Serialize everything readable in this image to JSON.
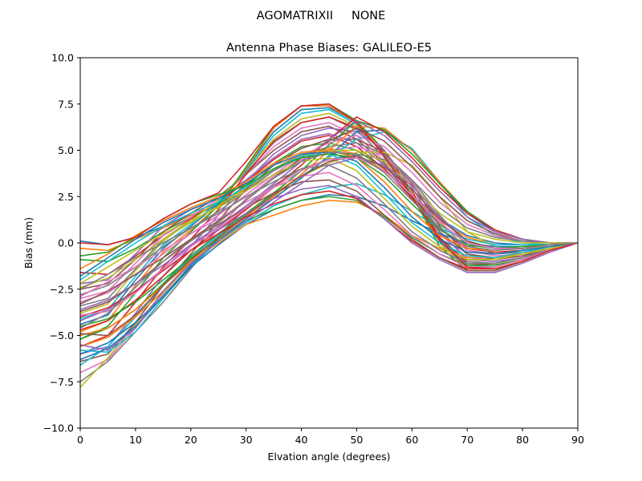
{
  "chart_data": {
    "type": "line",
    "suptitle": "AGOMATRIXII     NONE",
    "title": "Antenna Phase Biases: GALILEO-E5",
    "xlabel": "Elvation angle (degrees)",
    "ylabel": "Bias (mm)",
    "xlim": [
      0,
      90
    ],
    "ylim": [
      -10,
      10
    ],
    "xticks": [
      "0",
      "10",
      "20",
      "30",
      "40",
      "50",
      "60",
      "70",
      "80",
      "90"
    ],
    "yticks": [
      "10.0",
      "7.5",
      "5.0",
      "2.5",
      "0.0",
      "−2.5",
      "−5.0",
      "−7.5",
      "−10.0"
    ],
    "grid": false,
    "legend": "none",
    "x": [
      0,
      5,
      10,
      15,
      20,
      25,
      30,
      35,
      40,
      45,
      50,
      55,
      60,
      65,
      70,
      75,
      80,
      85,
      90
    ],
    "series": [
      {
        "values": [
          0.1,
          -0.1,
          0.3,
          0.9,
          1.5,
          2.0,
          2.8,
          3.9,
          4.7,
          5.0,
          4.7,
          3.9,
          2.6,
          1.3,
          0.4,
          0.0,
          -0.1,
          -0.1,
          0.0
        ]
      },
      {
        "values": [
          -0.3,
          -0.4,
          0.2,
          0.8,
          1.5,
          2.1,
          2.9,
          4.0,
          4.8,
          5.1,
          4.8,
          3.9,
          2.6,
          1.2,
          0.3,
          -0.1,
          -0.1,
          -0.1,
          0.0
        ]
      },
      {
        "values": [
          -0.9,
          -1.0,
          -0.3,
          0.6,
          1.4,
          2.1,
          3.1,
          4.3,
          5.2,
          5.4,
          5.0,
          4.0,
          2.5,
          1.0,
          0.0,
          -0.3,
          -0.3,
          -0.1,
          0.0
        ]
      },
      {
        "values": [
          -1.6,
          -1.7,
          -0.7,
          0.4,
          1.3,
          2.2,
          3.3,
          4.5,
          5.5,
          5.8,
          5.2,
          4.0,
          2.4,
          0.8,
          -0.3,
          -0.5,
          -0.4,
          -0.2,
          0.0
        ]
      },
      {
        "values": [
          -2.2,
          -2.0,
          -0.6,
          0.9,
          1.8,
          2.4,
          3.4,
          4.6,
          5.6,
          5.9,
          5.4,
          4.2,
          2.5,
          0.8,
          -0.4,
          -0.6,
          -0.4,
          -0.2,
          0.0
        ]
      },
      {
        "values": [
          -2.5,
          -2.2,
          -0.9,
          0.6,
          1.6,
          2.5,
          3.7,
          5.0,
          6.0,
          6.3,
          5.6,
          4.3,
          2.5,
          0.6,
          -0.6,
          -0.8,
          -0.6,
          -0.3,
          0.0
        ]
      },
      {
        "values": [
          -3.0,
          -2.6,
          -1.1,
          0.4,
          1.4,
          2.4,
          3.7,
          5.2,
          6.2,
          6.5,
          5.8,
          4.4,
          2.5,
          0.5,
          -0.8,
          -0.9,
          -0.7,
          -0.3,
          0.0
        ]
      },
      {
        "values": [
          -3.4,
          -3.0,
          -1.4,
          0.2,
          1.2,
          2.3,
          3.8,
          5.4,
          6.5,
          6.8,
          6.1,
          4.6,
          2.5,
          0.3,
          -1.0,
          -1.1,
          -0.8,
          -0.3,
          0.0
        ]
      },
      {
        "values": [
          -3.8,
          -3.3,
          -1.5,
          0.1,
          1.2,
          2.3,
          3.9,
          5.6,
          6.7,
          7.0,
          6.3,
          4.8,
          2.6,
          0.3,
          -1.1,
          -1.2,
          -0.9,
          -0.4,
          0.0
        ]
      },
      {
        "values": [
          -4.1,
          -3.6,
          -1.8,
          -0.1,
          1.0,
          2.2,
          3.9,
          5.8,
          7.0,
          7.2,
          6.4,
          4.8,
          2.6,
          0.2,
          -1.2,
          -1.3,
          -0.9,
          -0.4,
          0.0
        ]
      },
      {
        "values": [
          -4.4,
          -3.9,
          -2.0,
          -0.3,
          0.9,
          2.1,
          4.0,
          6.0,
          7.2,
          7.3,
          6.5,
          4.9,
          2.6,
          0.1,
          -1.3,
          -1.4,
          -1.0,
          -0.4,
          0.0
        ]
      },
      {
        "values": [
          -4.8,
          -4.2,
          -2.3,
          -0.5,
          0.7,
          2.0,
          4.0,
          6.2,
          7.4,
          7.4,
          6.5,
          4.9,
          2.6,
          0.0,
          -1.4,
          -1.4,
          -1.0,
          -0.4,
          0.0
        ]
      },
      {
        "values": [
          -5.2,
          -4.5,
          -2.7,
          -0.8,
          0.6,
          2.0,
          4.1,
          6.3,
          7.4,
          7.5,
          6.6,
          5.0,
          2.6,
          -0.2,
          -1.5,
          -1.5,
          -1.0,
          -0.4,
          0.0
        ]
      },
      {
        "values": [
          -5.6,
          -5.0,
          -3.2,
          -1.3,
          0.2,
          1.8,
          3.7,
          5.5,
          6.5,
          6.8,
          6.2,
          4.9,
          2.8,
          0.3,
          -1.1,
          -1.2,
          -0.9,
          -0.4,
          0.0
        ]
      },
      {
        "values": [
          -6.0,
          -5.6,
          -3.8,
          -1.8,
          -0.2,
          1.5,
          3.3,
          4.8,
          5.8,
          6.2,
          6.0,
          5.0,
          3.0,
          0.6,
          -0.9,
          -1.0,
          -0.8,
          -0.4,
          0.0
        ]
      },
      {
        "values": [
          -6.4,
          -6.0,
          -4.3,
          -2.3,
          -0.6,
          1.2,
          2.9,
          4.2,
          5.1,
          5.6,
          5.6,
          4.9,
          3.2,
          0.9,
          -0.6,
          -0.9,
          -0.7,
          -0.3,
          0.0
        ]
      },
      {
        "values": [
          -7.0,
          -6.3,
          -4.6,
          -2.8,
          -1.0,
          0.8,
          2.4,
          3.6,
          4.5,
          5.0,
          5.2,
          4.7,
          3.3,
          1.2,
          -0.4,
          -0.7,
          -0.6,
          -0.3,
          0.0
        ]
      },
      {
        "values": [
          -7.5,
          -6.4,
          -4.8,
          -3.2,
          -1.4,
          0.4,
          1.9,
          3.1,
          4.0,
          4.5,
          4.8,
          4.5,
          3.4,
          1.5,
          -0.1,
          -0.6,
          -0.5,
          -0.3,
          0.0
        ]
      },
      {
        "values": [
          -7.8,
          -6.2,
          -4.4,
          -2.7,
          -1.1,
          0.3,
          1.6,
          2.7,
          3.6,
          4.3,
          4.9,
          4.9,
          4.2,
          2.5,
          0.6,
          -0.2,
          -0.3,
          -0.2,
          0.0
        ]
      },
      {
        "values": [
          -6.6,
          -5.6,
          -4.0,
          -2.3,
          -0.8,
          0.4,
          1.5,
          2.6,
          3.6,
          4.6,
          5.6,
          6.0,
          5.1,
          3.3,
          1.4,
          0.4,
          0.0,
          -0.1,
          0.0
        ]
      },
      {
        "values": [
          -6.0,
          -5.4,
          -4.3,
          -2.9,
          -1.2,
          0.2,
          1.3,
          2.4,
          3.5,
          4.7,
          6.0,
          6.1,
          5.0,
          3.2,
          1.6,
          0.6,
          0.2,
          0.0,
          0.0
        ]
      },
      {
        "values": [
          -5.6,
          -5.1,
          -4.0,
          -2.6,
          -1.0,
          0.3,
          1.4,
          2.5,
          3.7,
          5.0,
          6.3,
          6.2,
          5.0,
          3.3,
          1.7,
          0.7,
          0.2,
          0.0,
          0.0
        ]
      },
      {
        "values": [
          -5.2,
          -4.6,
          -3.6,
          -2.2,
          -0.7,
          0.5,
          1.6,
          2.7,
          3.9,
          5.3,
          6.6,
          6.1,
          4.8,
          3.2,
          1.7,
          0.7,
          0.2,
          0.0,
          0.0
        ]
      },
      {
        "values": [
          -4.7,
          -4.2,
          -3.1,
          -1.8,
          -0.4,
          0.7,
          1.8,
          3.0,
          4.2,
          5.6,
          6.8,
          6.0,
          4.6,
          3.0,
          1.6,
          0.7,
          0.2,
          0.0,
          0.0
        ]
      },
      {
        "values": [
          -4.2,
          -3.6,
          -2.6,
          -1.4,
          -0.1,
          0.9,
          2.0,
          3.2,
          4.4,
          5.6,
          6.6,
          5.8,
          4.4,
          2.8,
          1.4,
          0.6,
          0.2,
          0.0,
          0.0
        ]
      },
      {
        "values": [
          -3.7,
          -3.2,
          -2.2,
          -1.0,
          0.2,
          1.2,
          2.3,
          3.5,
          4.6,
          5.5,
          6.2,
          5.5,
          4.1,
          2.5,
          1.2,
          0.5,
          0.1,
          0.0,
          0.0
        ]
      },
      {
        "values": [
          -3.2,
          -2.7,
          -1.7,
          -0.6,
          0.5,
          1.5,
          2.6,
          3.7,
          4.7,
          5.4,
          5.8,
          5.2,
          3.8,
          2.2,
          1.0,
          0.4,
          0.1,
          0.0,
          0.0
        ]
      },
      {
        "values": [
          -2.8,
          -2.3,
          -1.3,
          -0.2,
          0.8,
          1.7,
          2.8,
          3.9,
          4.7,
          5.2,
          5.4,
          4.8,
          3.4,
          1.9,
          0.8,
          0.3,
          0.1,
          0.0,
          0.0
        ]
      },
      {
        "values": [
          -2.4,
          -1.9,
          -0.9,
          0.2,
          1.1,
          2.0,
          3.0,
          4.0,
          4.7,
          5.0,
          5.0,
          4.4,
          3.1,
          1.6,
          0.6,
          0.2,
          0.0,
          0.0,
          0.0
        ]
      },
      {
        "values": [
          -5.8,
          -5.9,
          -4.8,
          -3.0,
          -1.3,
          0.1,
          1.1,
          2.0,
          2.6,
          3.0,
          3.2,
          2.6,
          1.7,
          0.8,
          0.2,
          -0.1,
          -0.1,
          -0.1,
          0.0
        ]
      },
      {
        "values": [
          -6.3,
          -5.7,
          -4.5,
          -2.9,
          -1.3,
          -0.1,
          1.0,
          1.8,
          2.3,
          2.6,
          2.5,
          2.0,
          1.2,
          0.5,
          0.0,
          -0.2,
          -0.2,
          -0.1,
          0.0
        ]
      },
      {
        "values": [
          -5.0,
          -4.6,
          -3.6,
          -2.3,
          -1.0,
          0.0,
          1.0,
          1.5,
          2.0,
          2.3,
          2.2,
          1.5,
          0.4,
          -0.3,
          -0.8,
          -0.8,
          -0.6,
          -0.3,
          0.0
        ]
      },
      {
        "values": [
          -4.5,
          -4.1,
          -3.2,
          -2.0,
          -0.8,
          0.2,
          1.2,
          1.8,
          2.3,
          2.5,
          2.3,
          1.4,
          0.3,
          -0.6,
          -1.2,
          -1.2,
          -0.9,
          -0.4,
          0.0
        ]
      },
      {
        "values": [
          -4.0,
          -3.5,
          -2.6,
          -1.5,
          -0.4,
          0.5,
          1.4,
          2.1,
          2.6,
          2.8,
          2.4,
          1.3,
          0.1,
          -0.8,
          -1.4,
          -1.4,
          -1.0,
          -0.4,
          0.0
        ]
      },
      {
        "values": [
          -3.6,
          -3.1,
          -2.2,
          -1.2,
          -0.1,
          0.7,
          1.6,
          2.4,
          2.9,
          3.1,
          2.5,
          1.3,
          0.0,
          -0.9,
          -1.6,
          -1.6,
          -1.1,
          -0.5,
          0.0
        ]
      },
      {
        "values": [
          -3.3,
          -2.6,
          -1.7,
          -0.8,
          0.2,
          1.0,
          1.9,
          2.7,
          3.3,
          3.4,
          2.8,
          1.5,
          0.2,
          -0.8,
          -1.5,
          -1.5,
          -1.0,
          -0.4,
          0.0
        ]
      },
      {
        "values": [
          -2.9,
          -2.1,
          -1.3,
          -0.4,
          0.5,
          1.3,
          2.2,
          3.0,
          3.6,
          3.8,
          3.1,
          1.8,
          0.4,
          -0.6,
          -1.3,
          -1.3,
          -0.9,
          -0.4,
          0.0
        ]
      },
      {
        "values": [
          -2.5,
          -1.7,
          -0.8,
          0.0,
          0.8,
          1.6,
          2.5,
          3.3,
          4.0,
          4.2,
          3.5,
          2.1,
          0.6,
          -0.4,
          -1.1,
          -1.1,
          -0.8,
          -0.3,
          0.0
        ]
      },
      {
        "values": [
          -2.2,
          -1.3,
          -0.4,
          0.5,
          1.2,
          1.9,
          2.8,
          3.7,
          4.4,
          4.6,
          3.9,
          2.4,
          0.9,
          -0.2,
          -0.9,
          -0.9,
          -0.6,
          -0.3,
          0.0
        ]
      },
      {
        "values": [
          -2.0,
          -1.0,
          0.0,
          0.9,
          1.6,
          2.2,
          3.0,
          4.0,
          4.7,
          4.8,
          4.2,
          2.7,
          1.1,
          0.0,
          -0.7,
          -0.8,
          -0.5,
          -0.2,
          0.0
        ]
      },
      {
        "values": [
          -1.8,
          -0.8,
          0.2,
          1.1,
          1.8,
          2.4,
          3.2,
          4.2,
          4.8,
          4.9,
          4.4,
          3.0,
          1.4,
          0.2,
          -0.5,
          -0.6,
          -0.4,
          -0.2,
          0.0
        ]
      },
      {
        "values": [
          -1.4,
          -0.6,
          0.4,
          1.2,
          1.9,
          2.5,
          3.3,
          4.3,
          4.9,
          5.0,
          4.6,
          3.3,
          1.7,
          0.4,
          -0.3,
          -0.4,
          -0.3,
          -0.1,
          0.0
        ]
      },
      {
        "values": [
          -0.7,
          -0.5,
          0.3,
          1.3,
          2.1,
          2.6,
          3.1,
          4.0,
          4.6,
          4.8,
          4.6,
          3.6,
          2.1,
          0.7,
          -0.1,
          -0.3,
          -0.2,
          -0.1,
          0.0
        ]
      },
      {
        "values": [
          0.0,
          -0.1,
          0.3,
          1.3,
          2.1,
          2.7,
          4.4,
          6.3,
          7.4,
          7.5,
          6.5,
          4.7,
          2.5,
          0.2,
          -1.3,
          -1.4,
          -1.0,
          -0.4,
          0.0
        ]
      },
      {
        "values": [
          -5.5,
          -5.8,
          -4.6,
          -2.6,
          -1.1,
          0.1,
          1.2,
          2.2,
          3.2,
          4.2,
          4.6,
          4.2,
          3.1,
          1.4,
          0.1,
          -0.3,
          -0.3,
          -0.1,
          0.0
        ]
      },
      {
        "values": [
          -4.9,
          -5.0,
          -3.9,
          -2.3,
          -0.9,
          0.3,
          1.5,
          2.6,
          3.6,
          4.4,
          4.7,
          4.1,
          2.9,
          1.3,
          0.1,
          -0.3,
          -0.3,
          -0.1,
          0.0
        ]
      },
      {
        "values": [
          -3.9,
          -3.7,
          -2.7,
          -1.4,
          -0.2,
          0.8,
          1.9,
          3.0,
          3.9,
          4.5,
          4.6,
          3.9,
          2.6,
          1.1,
          0.0,
          -0.3,
          -0.3,
          -0.1,
          0.0
        ]
      },
      {
        "values": [
          -4.6,
          -3.8,
          -2.4,
          -1.0,
          0.1,
          1.1,
          2.3,
          3.5,
          4.4,
          4.9,
          4.8,
          3.8,
          2.3,
          0.8,
          -0.2,
          -0.4,
          -0.3,
          -0.1,
          0.0
        ]
      }
    ]
  },
  "colors": [
    "#1f77b4",
    "#ff7f0e",
    "#2ca02c",
    "#d62728",
    "#9467bd",
    "#8c564b",
    "#e377c2",
    "#7f7f7f",
    "#bcbd22",
    "#17becf"
  ]
}
